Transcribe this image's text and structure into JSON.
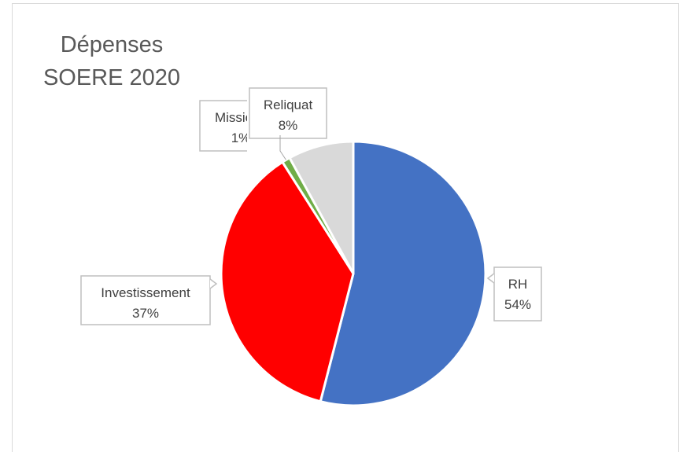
{
  "chart_data": {
    "type": "pie",
    "title_lines": [
      "Dépenses",
      "SOERE 2020"
    ],
    "slices": [
      {
        "name": "RH",
        "value": 54,
        "percent_label": "54%",
        "color": "#4472C4"
      },
      {
        "name": "Investissement",
        "value": 37,
        "percent_label": "37%",
        "color": "#FF0000"
      },
      {
        "name": "Missions",
        "value": 1,
        "percent_label": "1%",
        "color": "#70AD47"
      },
      {
        "name": "Reliquat",
        "value": 8,
        "percent_label": "8%",
        "color": "#D9D9D9"
      }
    ]
  }
}
